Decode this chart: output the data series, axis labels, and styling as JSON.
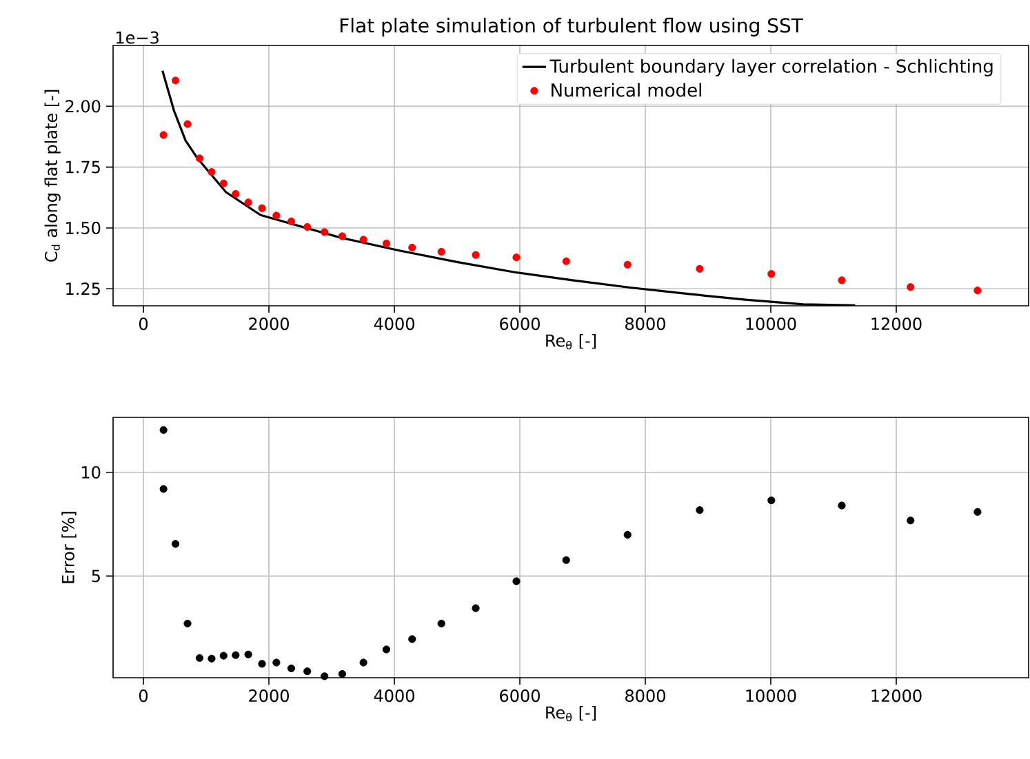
{
  "chart_data": [
    {
      "type": "scatter",
      "title": "Flat plate simulation of turbulent flow using SST",
      "xlabel": "Re$_{θ}$ [-]",
      "ylabel": "C$_{d}$ along flat plate [-]",
      "annotations": [
        "1e−3"
      ],
      "xlim": [
        -484,
        14110
      ],
      "ylim": [
        1.18,
        2.25
      ],
      "xticks": [
        0,
        2000,
        4000,
        6000,
        8000,
        10000,
        12000
      ],
      "yticks": [
        1.25,
        {
          "value": 1.5,
          "label": "1.50"
        },
        1.75,
        {
          "value": 2.0,
          "label": "2.00"
        }
      ],
      "grid": true,
      "legend": "top right",
      "series": [
        {
          "name": "Turbulent boundary layer correlation - Schlichting",
          "type": "line",
          "marker": "none",
          "color": "#000000",
          "x": [
            304,
            488,
            672,
            856,
            1316,
            1868,
            2604,
            3156,
            4076,
            4996,
            5917,
            6837,
            7757,
            8677,
            9597,
            10517,
            11346
          ],
          "values": [
            2.146,
            1.981,
            1.859,
            1.788,
            1.647,
            1.553,
            1.499,
            1.459,
            1.407,
            1.36,
            1.318,
            1.285,
            1.255,
            1.229,
            1.205,
            1.186,
            1.182
          ]
        },
        {
          "name": "Numerical model",
          "type": "scatter",
          "marker": "circle",
          "color": "#ff0000",
          "x": [
            320,
            511,
            703,
            895,
            1087,
            1278,
            1470,
            1671,
            1890,
            2119,
            2356,
            2612,
            2886,
            3169,
            3507,
            3872,
            4283,
            4749,
            5297,
            5945,
            6739,
            7717,
            8867,
            10009,
            11132,
            12228,
            13296
          ],
          "values": [
            1.882,
            2.106,
            1.927,
            1.786,
            1.73,
            1.683,
            1.64,
            1.605,
            1.581,
            1.551,
            1.527,
            1.504,
            1.483,
            1.466,
            1.452,
            1.436,
            1.419,
            1.402,
            1.389,
            1.379,
            1.363,
            1.349,
            1.332,
            1.311,
            1.285,
            1.257,
            1.243
          ]
        }
      ]
    },
    {
      "type": "scatter",
      "xlabel": "Re$_{θ}$ [-]",
      "ylabel": "Error [%]",
      "xlim": [
        -484,
        14110
      ],
      "ylim": [
        0.1,
        12.65
      ],
      "xticks": [
        0,
        2000,
        4000,
        6000,
        8000,
        10000,
        12000
      ],
      "yticks": [
        5,
        10
      ],
      "grid": true,
      "series": [
        {
          "marker": "circle",
          "color": "#000000",
          "x": [
            320,
            320,
            511,
            703,
            895,
            1087,
            1278,
            1470,
            1671,
            1890,
            2119,
            2356,
            2612,
            2886,
            3169,
            3507,
            3872,
            4283,
            4749,
            5297,
            5945,
            6739,
            7717,
            8867,
            10009,
            11132,
            12228,
            13296
          ],
          "values": [
            12.04,
            9.2,
            6.55,
            2.71,
            1.05,
            1.02,
            1.16,
            1.19,
            1.22,
            0.77,
            0.83,
            0.55,
            0.41,
            0.17,
            0.28,
            0.83,
            1.46,
            1.96,
            2.71,
            3.45,
            4.75,
            5.77,
            6.99,
            8.18,
            8.65,
            8.4,
            7.68,
            8.09
          ]
        }
      ]
    }
  ]
}
